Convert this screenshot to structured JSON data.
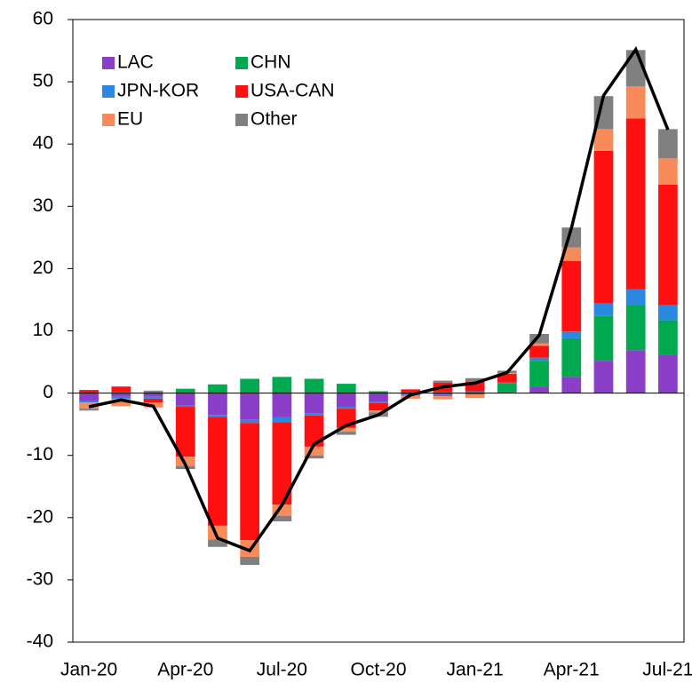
{
  "chart_data": {
    "type": "bar",
    "stacked": true,
    "categories": [
      "Jan-20",
      null,
      null,
      "Apr-20",
      null,
      null,
      "Jul-20",
      null,
      null,
      "Oct-20",
      null,
      null,
      "Jan-21",
      null,
      null,
      "Apr-21",
      null,
      null,
      "Jul-21"
    ],
    "series": [
      {
        "name": "LAC",
        "color": "#8b3fc9",
        "values": [
          -1.2,
          -0.6,
          -0.6,
          -2,
          -3.5,
          -4.3,
          -3.9,
          -3.3,
          -2.2,
          -1.4,
          -0.3,
          -0.3,
          -0.2,
          0.1,
          1,
          2.6,
          5.2,
          6.9,
          6.2
        ]
      },
      {
        "name": "CHN",
        "color": "#00a84f",
        "values": [
          0,
          0.2,
          0.2,
          0.7,
          1.4,
          2.3,
          2.6,
          2.3,
          1.5,
          0.3,
          0.1,
          0.2,
          0.2,
          1.5,
          4.2,
          6.2,
          7.2,
          7.3,
          5.5
        ]
      },
      {
        "name": "JPN-KOR",
        "color": "#2b88e0",
        "values": [
          -0.3,
          -0.3,
          -0.3,
          -0.2,
          -0.3,
          -0.5,
          -0.8,
          -0.3,
          -0.3,
          -0.2,
          -0.1,
          -0.2,
          0.1,
          0.1,
          0.5,
          1.1,
          2,
          2.5,
          2.4
        ]
      },
      {
        "name": "USA-CAN",
        "color": "#ff1010",
        "values": [
          0.5,
          0.8,
          -0.6,
          -8,
          -17.5,
          -18.8,
          -13.2,
          -5,
          -3.1,
          -1.2,
          0.5,
          1.5,
          1.5,
          1.4,
          1.9,
          11.3,
          24.5,
          27.4,
          19.4
        ]
      },
      {
        "name": "EU",
        "color": "#f98a5a",
        "values": [
          -1,
          -1.2,
          -0.8,
          -1.5,
          -2.2,
          -2.7,
          -1.8,
          -1.4,
          -0.6,
          -0.3,
          -0.5,
          -0.5,
          -0.6,
          0.1,
          0.4,
          2.2,
          3.5,
          5.2,
          4.2
        ]
      },
      {
        "name": "Other",
        "color": "#808080",
        "values": [
          -0.3,
          0.1,
          0.2,
          -0.5,
          -1.2,
          -1.3,
          -0.9,
          -0.5,
          -0.5,
          -0.7,
          0,
          0.3,
          0.6,
          0.4,
          1.5,
          3.2,
          5.3,
          5.8,
          4.7
        ]
      }
    ],
    "line": {
      "color": "#000000",
      "values": [
        -2.2,
        -1.1,
        -2.1,
        -11.5,
        -23.3,
        -25.3,
        -18,
        -8.2,
        -5.2,
        -3.5,
        -0.3,
        1,
        1.6,
        3.3,
        9.3,
        26.5,
        47.8,
        55.2,
        42.3
      ]
    },
    "ylim": [
      -40,
      60
    ],
    "yticks": [
      -40,
      -30,
      -20,
      -10,
      0,
      10,
      20,
      30,
      40,
      50,
      60
    ],
    "grid": false,
    "legend": "upper left"
  }
}
